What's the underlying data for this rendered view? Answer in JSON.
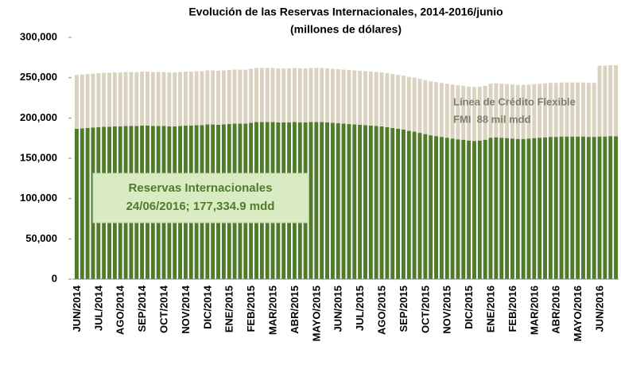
{
  "chart_data": {
    "type": "stacked_bar",
    "title": "Evolución de las Reservas Internacionales, 2014-2016/junio",
    "subtitle": "(millones de dólares)",
    "categories": [
      "JUN/2014",
      null,
      null,
      null,
      "JUL/2014",
      null,
      null,
      null,
      "AGO/2014",
      null,
      null,
      null,
      "SEP/2014",
      null,
      null,
      null,
      "OCT/2014",
      null,
      null,
      null,
      "NOV/2014",
      null,
      null,
      null,
      "DIC/2014",
      null,
      null,
      null,
      "ENE/2015",
      null,
      null,
      null,
      "FEB/2015",
      null,
      null,
      null,
      "MAR/2015",
      null,
      null,
      null,
      "ABR/2015",
      null,
      null,
      null,
      "MAYO/2015",
      null,
      null,
      null,
      "JUN/2015",
      null,
      null,
      null,
      "JUL/2015",
      null,
      null,
      null,
      "AGO/2015",
      null,
      null,
      null,
      "SEP/2015",
      null,
      null,
      null,
      "OCT/2015",
      null,
      null,
      null,
      "NOV/2015",
      null,
      null,
      null,
      "DIC/2015",
      null,
      null,
      null,
      "ENE/2016",
      null,
      null,
      null,
      "FEB/2016",
      null,
      null,
      null,
      "MAR/2016",
      null,
      null,
      null,
      "ABR/2016",
      null,
      null,
      null,
      "MAYO/2016",
      null,
      null,
      null,
      "JUN/2016",
      null,
      null,
      null
    ],
    "series": [
      {
        "name": "Reservas Internacionales",
        "color": "#4f7b2b",
        "values": [
          186500,
          187000,
          187500,
          188000,
          188500,
          189000,
          189000,
          189500,
          189500,
          190000,
          190000,
          190000,
          190500,
          190500,
          190000,
          190000,
          190000,
          189500,
          189500,
          190000,
          190500,
          190500,
          191000,
          191000,
          192000,
          192000,
          191500,
          192000,
          192500,
          193000,
          193000,
          193000,
          194000,
          195000,
          195000,
          195000,
          195000,
          194500,
          194500,
          194500,
          195000,
          194500,
          194500,
          195000,
          195000,
          195000,
          194500,
          194000,
          193500,
          193000,
          192500,
          192000,
          191500,
          191000,
          190500,
          190000,
          189500,
          188500,
          187500,
          186500,
          185500,
          184000,
          183000,
          181500,
          180000,
          178500,
          177500,
          176500,
          175500,
          174500,
          173500,
          173000,
          172000,
          171500,
          172000,
          173000,
          175500,
          176000,
          175500,
          175000,
          174500,
          174000,
          174000,
          174500,
          175000,
          175500,
          176000,
          176500,
          176500,
          177000,
          177000,
          177000,
          177000,
          177000,
          176500,
          176500,
          177000,
          177000,
          177500,
          177334.9
        ]
      },
      {
        "name": "Línea de Crédito Flexible",
        "color": "#d9d3bf",
        "values": [
          67000,
          67000,
          67000,
          67000,
          67000,
          67000,
          67000,
          67000,
          67000,
          67000,
          67000,
          67000,
          67000,
          67000,
          67000,
          67000,
          67000,
          67000,
          67000,
          67000,
          67000,
          67000,
          67000,
          67000,
          67000,
          67000,
          67000,
          67000,
          67000,
          67000,
          67000,
          67000,
          67000,
          67000,
          67000,
          67000,
          67000,
          67000,
          67000,
          67000,
          67000,
          67000,
          67000,
          67000,
          67000,
          67000,
          67000,
          67000,
          67000,
          67000,
          67000,
          67000,
          67000,
          67000,
          67000,
          67000,
          67000,
          67000,
          67000,
          67000,
          67000,
          67000,
          67000,
          67000,
          67000,
          67000,
          67000,
          67000,
          67000,
          67000,
          67000,
          67000,
          67000,
          67000,
          67000,
          67000,
          67000,
          67000,
          67000,
          67000,
          67000,
          67000,
          67000,
          67000,
          67000,
          67000,
          67000,
          67000,
          67000,
          67000,
          67000,
          67000,
          67000,
          67000,
          67000,
          67000,
          88000,
          88000,
          88000,
          88000
        ]
      }
    ],
    "annotations": [
      "Reservas Internacionales",
      "24/06/2016; 177,334.9 mdd",
      "Línea de Crédito Flexible",
      "FMI  88 mil mdd"
    ],
    "ylim": [
      0,
      300000
    ],
    "yticks": [
      0,
      {
        "value": 50000,
        "label": "50,000"
      },
      {
        "value": 100000,
        "label": "100,000"
      },
      {
        "value": 150000,
        "label": "150,000"
      },
      {
        "value": 200000,
        "label": "200,000"
      },
      {
        "value": 250000,
        "label": "250,000"
      },
      {
        "value": 300000,
        "label": "300,000"
      }
    ]
  }
}
